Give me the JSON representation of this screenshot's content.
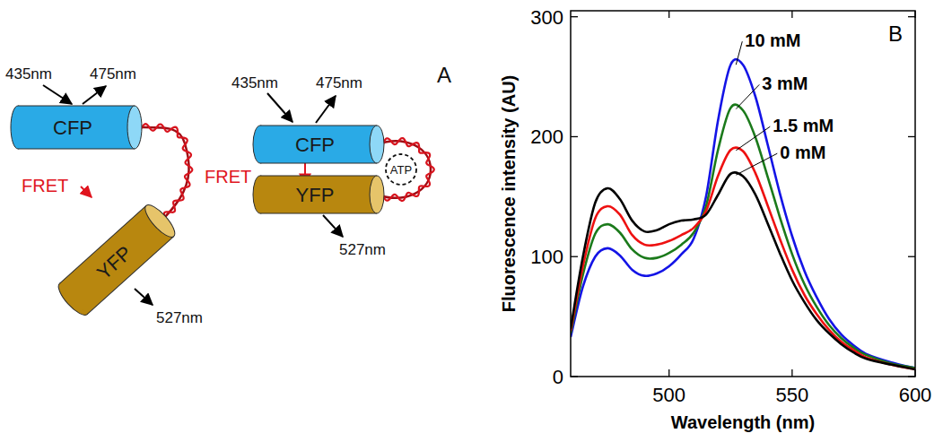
{
  "diagram": {
    "label": "A",
    "states": [
      {
        "donor": "CFP",
        "acceptor": "YFP",
        "excitation": "435nm",
        "donor_emission": "475nm",
        "acceptor_emission": "527nm",
        "transfer": "FRET"
      },
      {
        "donor": "CFP",
        "acceptor": "YFP",
        "excitation": "435nm",
        "donor_emission": "475nm",
        "acceptor_emission": "527nm",
        "transfer": "FRET",
        "ligand": "ATP"
      }
    ]
  },
  "chart_data": {
    "type": "line",
    "annotations": [
      "B"
    ],
    "x_label": "Wavelength (nm)",
    "y_label": "Fluorescence intensity (AU)",
    "x": [
      460,
      465,
      470,
      475,
      480,
      485,
      490,
      495,
      500,
      505,
      510,
      515,
      520,
      525,
      530,
      535,
      540,
      545,
      550,
      555,
      560,
      565,
      570,
      575,
      580,
      590,
      600
    ],
    "series": [
      {
        "name": "10 mM",
        "color": "#1414e6",
        "values": [
          33,
          75,
          100,
          107,
          101,
          89,
          84,
          86,
          92,
          102,
          115,
          150,
          215,
          260,
          260,
          234,
          194,
          153,
          117,
          88,
          66,
          48,
          35,
          26,
          19,
          12,
          7
        ]
      },
      {
        "name": "3 mM",
        "color": "#1b7a1b",
        "values": [
          36,
          85,
          119,
          127,
          120,
          106,
          99,
          99,
          103,
          110,
          120,
          142,
          190,
          224,
          222,
          200,
          167,
          133,
          102,
          77,
          58,
          43,
          32,
          24,
          18,
          11,
          7
        ]
      },
      {
        "name": "1.5 mM",
        "color": "#ee1111",
        "values": [
          38,
          92,
          132,
          142,
          135,
          118,
          110,
          110,
          113,
          118,
          124,
          138,
          168,
          189,
          188,
          170,
          143,
          115,
          89,
          68,
          52,
          39,
          29,
          22,
          16,
          10,
          6
        ]
      },
      {
        "name": "0 mM",
        "color": "#000000",
        "values": [
          40,
          100,
          145,
          157,
          148,
          130,
          121,
          122,
          127,
          130,
          131,
          135,
          152,
          169,
          167,
          152,
          128,
          103,
          80,
          62,
          47,
          36,
          27,
          20,
          15,
          10,
          6
        ]
      }
    ],
    "xlim": [
      460,
      600
    ],
    "xticks": [
      500,
      550,
      600
    ],
    "ylim": [
      0,
      305
    ],
    "yticks": [
      0,
      100,
      200,
      300
    ],
    "grid": false
  }
}
